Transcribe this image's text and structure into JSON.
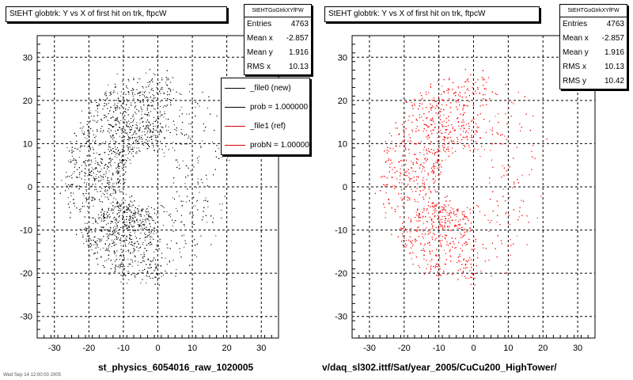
{
  "chart_data": [
    {
      "type": "scatter",
      "title": "StEHT globtrk: Y vs X of first hit on trk, ftpcW",
      "xlabel": "st_physics_6054016_raw_1020005",
      "ylabel": "",
      "xlim": [
        -35,
        35
      ],
      "ylim": [
        -35,
        35
      ],
      "xticks": [
        -30,
        -20,
        -10,
        0,
        10,
        20,
        30
      ],
      "yticks": [
        -30,
        -20,
        -10,
        0,
        10,
        20,
        30
      ],
      "grid": true,
      "point_color": "#000000",
      "distribution": {
        "shape": "ring",
        "inner_radius": 7,
        "outer_radius": 24,
        "center": [
          -2.857,
          1.916
        ],
        "dense_angle_ranges": [
          [
            70,
            200
          ],
          [
            210,
            280
          ]
        ]
      },
      "stats": {
        "header": "StEHTGoGtrkXYfFW",
        "rows": [
          {
            "label": "Entries",
            "value": "4763"
          },
          {
            "label": "Mean x",
            "value": "-2.857"
          },
          {
            "label": "Mean y",
            "value": "1.916"
          },
          {
            "label": "RMS x",
            "value": "10.13"
          }
        ]
      },
      "legend": {
        "placement": "top-right",
        "entries": [
          {
            "label": "_file0 (new)",
            "color": "#000000"
          },
          {
            "label": "prob = 1.000000",
            "color": "#000000"
          },
          {
            "label": "_file1 (ref)",
            "color": "#d40000"
          },
          {
            "label": "probN = 1.000000",
            "color": "#d40000"
          }
        ]
      }
    },
    {
      "type": "scatter",
      "title": "StEHT globtrk: Y vs X of first hit on trk, ftpcW",
      "xlabel": "v/daq_sl302.ittf/Sat/year_2005/CuCu200_HighTower/",
      "ylabel": "",
      "xlim": [
        -35,
        35
      ],
      "ylim": [
        -35,
        35
      ],
      "xticks": [
        -30,
        -20,
        -10,
        0,
        10,
        20,
        30
      ],
      "yticks": [
        -30,
        -20,
        -10,
        0,
        10,
        20,
        30
      ],
      "grid": true,
      "point_color": "#ff0000",
      "distribution": {
        "shape": "ring",
        "inner_radius": 7,
        "outer_radius": 24,
        "center": [
          -2.857,
          1.916
        ],
        "dense_angle_ranges": [
          [
            70,
            200
          ],
          [
            210,
            280
          ]
        ]
      },
      "stats": {
        "header": "StEHTGoGtrkXYfFW",
        "rows": [
          {
            "label": "Entries",
            "value": "4763"
          },
          {
            "label": "Mean x",
            "value": "-2.857"
          },
          {
            "label": "Mean y",
            "value": "1.916"
          },
          {
            "label": "RMS x",
            "value": "10.13"
          },
          {
            "label": "RMS y",
            "value": "10.42"
          }
        ]
      }
    }
  ],
  "footer_date": "Wed Sep 14 12:00:00 2005"
}
